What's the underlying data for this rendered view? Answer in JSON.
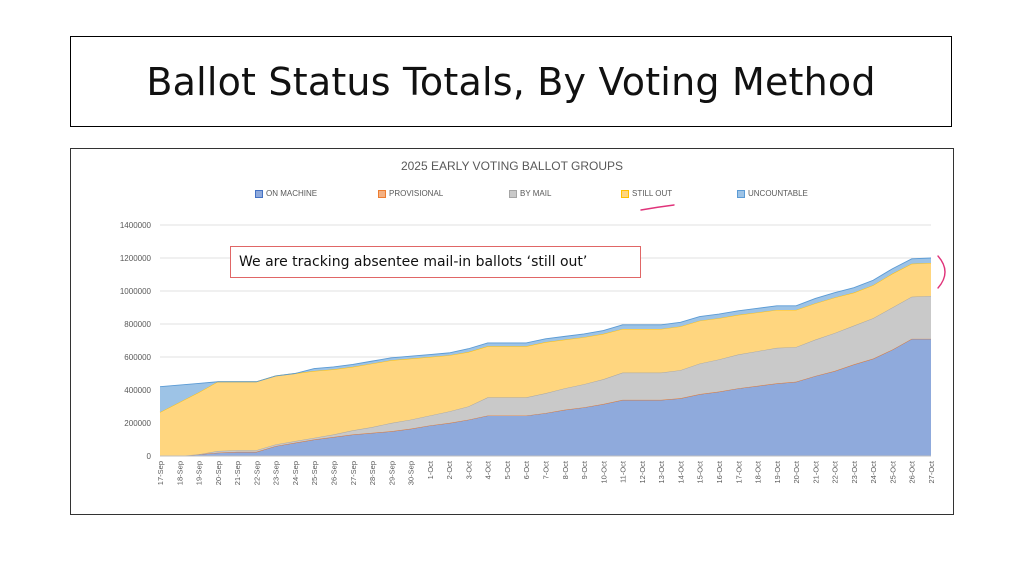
{
  "slide": {
    "title": "Ballot Status Totals, By Voting Method",
    "callout": "We are tracking absentee mail-in ballots ‘still out’"
  },
  "chart_data": {
    "type": "area",
    "stacked": true,
    "title": "2025 EARLY VOTING BALLOT GROUPS",
    "legend_position": "top",
    "grid": true,
    "ylim": [
      0,
      1400000
    ],
    "yticks": [
      "0",
      "200000",
      "400000",
      "600000",
      "800000",
      "1000000",
      "1200000",
      "1400000"
    ],
    "categories": [
      "17-Sep",
      "18-Sep",
      "19-Sep",
      "20-Sep",
      "21-Sep",
      "22-Sep",
      "23-Sep",
      "24-Sep",
      "25-Sep",
      "26-Sep",
      "27-Sep",
      "28-Sep",
      "29-Sep",
      "30-Sep",
      "1-Oct",
      "2-Oct",
      "3-Oct",
      "4-Oct",
      "5-Oct",
      "6-Oct",
      "7-Oct",
      "8-Oct",
      "9-Oct",
      "10-Oct",
      "11-Oct",
      "12-Oct",
      "13-Oct",
      "14-Oct",
      "15-Oct",
      "16-Oct",
      "17-Oct",
      "18-Oct",
      "19-Oct",
      "20-Oct",
      "21-Oct",
      "22-Oct",
      "23-Oct",
      "24-Oct",
      "25-Oct",
      "26-Oct",
      "27-Oct"
    ],
    "series": [
      {
        "name": "ON MACHINE",
        "color": "#8faadc",
        "line": "#4472c4",
        "values": [
          0,
          0,
          10000,
          20000,
          25000,
          25000,
          60000,
          80000,
          100000,
          115000,
          130000,
          140000,
          150000,
          165000,
          185000,
          200000,
          220000,
          245000,
          245000,
          245000,
          260000,
          280000,
          295000,
          315000,
          340000,
          340000,
          340000,
          350000,
          375000,
          390000,
          410000,
          425000,
          440000,
          450000,
          485000,
          515000,
          555000,
          590000,
          645000,
          710000,
          710000
        ]
      },
      {
        "name": "PROVISIONAL",
        "color": "#f4b183",
        "line": "#ed7d31",
        "values": [
          0,
          0,
          0,
          0,
          0,
          0,
          0,
          0,
          0,
          0,
          0,
          0,
          0,
          0,
          0,
          0,
          0,
          0,
          0,
          0,
          0,
          0,
          0,
          0,
          0,
          0,
          0,
          0,
          0,
          0,
          0,
          0,
          0,
          0,
          0,
          0,
          0,
          0,
          0,
          0,
          0
        ]
      },
      {
        "name": "BY MAIL",
        "color": "#c9c9c9",
        "line": "#a5a5a5",
        "values": [
          0,
          0,
          0,
          10000,
          10000,
          10000,
          10000,
          10000,
          10000,
          15000,
          25000,
          35000,
          50000,
          55000,
          60000,
          70000,
          80000,
          110000,
          110000,
          110000,
          120000,
          130000,
          140000,
          150000,
          165000,
          165000,
          165000,
          170000,
          185000,
          195000,
          205000,
          210000,
          215000,
          210000,
          220000,
          230000,
          235000,
          245000,
          255000,
          255000,
          260000
        ]
      },
      {
        "name": "STILL OUT",
        "color": "#ffd67f",
        "line": "#ffc000",
        "values": [
          265000,
          325000,
          375000,
          420000,
          415000,
          415000,
          415000,
          410000,
          405000,
          395000,
          385000,
          385000,
          380000,
          370000,
          355000,
          340000,
          330000,
          310000,
          310000,
          310000,
          310000,
          295000,
          285000,
          275000,
          265000,
          265000,
          265000,
          265000,
          260000,
          250000,
          240000,
          235000,
          230000,
          225000,
          220000,
          215000,
          200000,
          200000,
          205000,
          200000,
          200000
        ]
      },
      {
        "name": "UNCOUNTABLE",
        "color": "#9dc3e6",
        "line": "#5b9bd5",
        "values": [
          155000,
          105000,
          55000,
          0,
          0,
          0,
          0,
          0,
          15000,
          15000,
          15000,
          15000,
          15000,
          15000,
          15000,
          15000,
          20000,
          20000,
          20000,
          20000,
          20000,
          20000,
          20000,
          20000,
          25000,
          25000,
          25000,
          25000,
          25000,
          25000,
          25000,
          25000,
          25000,
          25000,
          30000,
          30000,
          30000,
          30000,
          30000,
          30000,
          30000
        ]
      }
    ]
  }
}
